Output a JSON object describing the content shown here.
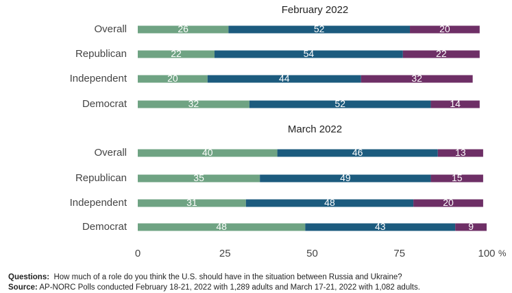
{
  "chart_data": {
    "type": "bar",
    "orientation": "horizontal",
    "stacked": true,
    "categories": [
      "Overall",
      "Republican",
      "Independent",
      "Democrat"
    ],
    "panels": [
      {
        "title": "February 2022",
        "series": [
          {
            "color": "#6fa383",
            "values": [
              26,
              22,
              20,
              32
            ]
          },
          {
            "color": "#1c5b7e",
            "values": [
              52,
              54,
              44,
              52
            ]
          },
          {
            "color": "#6e2f66",
            "values": [
              20,
              22,
              32,
              14
            ]
          }
        ]
      },
      {
        "title": "March 2022",
        "series": [
          {
            "color": "#6fa383",
            "values": [
              40,
              35,
              31,
              48
            ]
          },
          {
            "color": "#1c5b7e",
            "values": [
              46,
              49,
              48,
              43
            ]
          },
          {
            "color": "#6e2f66",
            "values": [
              13,
              15,
              20,
              9
            ]
          }
        ]
      }
    ],
    "xlim": [
      0,
      100
    ],
    "xticks": [
      "0",
      "25",
      "50",
      "75",
      "100"
    ],
    "x_unit": "%",
    "grid": false,
    "legend": "none"
  },
  "notes": {
    "questions_label": "Questions:",
    "questions_text": "How much of a role do you think the U.S. should have in the situation between Russia and Ukraine?",
    "source_label": "Source:",
    "source_text": "AP-NORC Polls conducted February 18-21, 2022 with 1,289 adults and March 17-21, 2022 with 1,082 adults."
  }
}
